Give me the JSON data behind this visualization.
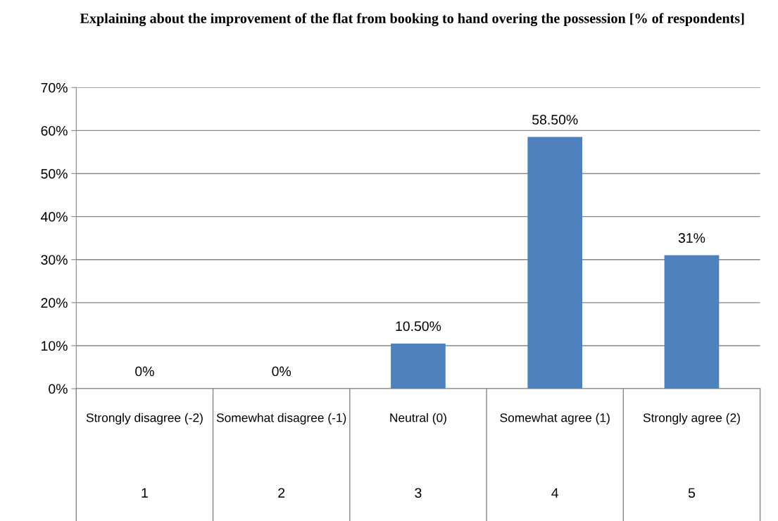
{
  "chart_data": {
    "type": "bar",
    "title": "Explaining about the improvement of the flat from booking to hand overing the possession [% of respondents]",
    "categories": [
      "Strongly disagree (-2)",
      "Somewhat disagree (-1)",
      "Neutral (0)",
      "Somewhat agree (1)",
      "Strongly agree (2)"
    ],
    "values": [
      0,
      0,
      10.5,
      58.5,
      31
    ],
    "value_labels": [
      "0%",
      "0%",
      "10.50%",
      "58.50%",
      "31%"
    ],
    "color": "#4f81bd",
    "ylim": [
      0,
      70
    ],
    "yticks": [
      {
        "value": 0,
        "label": "0%"
      },
      {
        "value": 10,
        "label": "10%"
      },
      {
        "value": 20,
        "label": "20%"
      },
      {
        "value": 30,
        "label": "30%"
      },
      {
        "value": 40,
        "label": "40%"
      },
      {
        "value": 50,
        "label": "50%"
      },
      {
        "value": 60,
        "label": "60%"
      },
      {
        "value": 70,
        "label": "70%"
      }
    ],
    "grid": "y",
    "annotations": [
      "1",
      "2",
      "3",
      "4",
      "5"
    ]
  }
}
